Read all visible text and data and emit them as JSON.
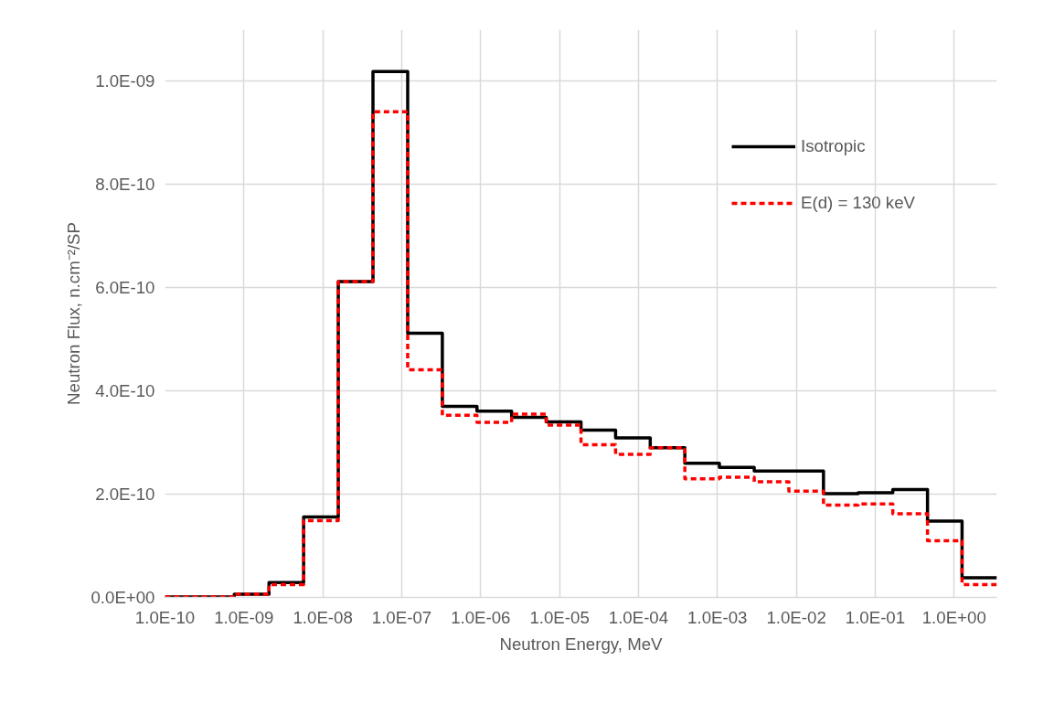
{
  "chart_data": {
    "type": "histogram",
    "xlabel": "Neutron Energy, MeV",
    "ylabel": "Neutron Flux, n.cm⁻²/SP",
    "bins": [
      1e-10,
      2.75e-10,
      7.55e-10,
      2.08e-09,
      5.71e-09,
      1.57e-08,
      4.32e-08,
      1.19e-07,
      3.27e-07,
      8.98e-07,
      2.47e-06,
      6.78e-06,
      1.87e-05,
      5.13e-05,
      0.000141,
      0.000387,
      0.00106,
      0.00293,
      0.00805,
      0.0221,
      0.0608,
      0.167,
      0.46,
      1.26,
      3.48
    ],
    "series": [
      {
        "name": "Isotropic",
        "color": "#000000",
        "line_style": "solid",
        "values": [
          1e-12,
          1e-12,
          6e-12,
          2.9e-11,
          1.56e-10,
          6.12e-10,
          1.019e-09,
          5.12e-10,
          3.7e-10,
          3.61e-10,
          3.49e-10,
          3.4e-10,
          3.24e-10,
          3.09e-10,
          2.9e-10,
          2.6e-10,
          2.52e-10,
          2.45e-10,
          2.45e-10,
          2.01e-10,
          2.03e-10,
          2.09e-10,
          1.48e-10,
          3.8e-11
        ]
      },
      {
        "name": "E(d) = 130 keV",
        "color": "#ff0000",
        "line_style": "dashed",
        "values": [
          1e-12,
          1e-12,
          6e-12,
          2.5e-11,
          1.49e-10,
          6.12e-10,
          9.41e-10,
          4.41e-10,
          3.53e-10,
          3.39e-10,
          3.55e-10,
          3.34e-10,
          2.96e-10,
          2.77e-10,
          2.9e-10,
          2.3e-10,
          2.33e-10,
          2.24e-10,
          2.06e-10,
          1.79e-10,
          1.81e-10,
          1.62e-10,
          1.1e-10,
          2.5e-11
        ]
      }
    ],
    "log": "x",
    "xlim": [
      1e-10,
      3.48
    ],
    "xticks": [
      {
        "value": 1e-10,
        "label": "1.0E-10"
      },
      {
        "value": 1e-09,
        "label": "1.0E-09"
      },
      {
        "value": 1e-08,
        "label": "1.0E-08"
      },
      {
        "value": 1e-07,
        "label": "1.0E-07"
      },
      {
        "value": 1e-06,
        "label": "1.0E-06"
      },
      {
        "value": 1e-05,
        "label": "1.0E-05"
      },
      {
        "value": 0.0001,
        "label": "1.0E-04"
      },
      {
        "value": 0.001,
        "label": "1.0E-03"
      },
      {
        "value": 0.01,
        "label": "1.0E-02"
      },
      {
        "value": 0.1,
        "label": "1.0E-01"
      },
      {
        "value": 1,
        "label": "1.0E+00"
      }
    ],
    "ylim": [
      0,
      1.1e-09
    ],
    "yticks": [
      {
        "value": 0,
        "label": "0.0E+00"
      },
      {
        "value": 2e-10,
        "label": "2.0E-10"
      },
      {
        "value": 4e-10,
        "label": "4.0E-10"
      },
      {
        "value": 6e-10,
        "label": "6.0E-10"
      },
      {
        "value": 8e-10,
        "label": "8.0E-10"
      },
      {
        "value": 1e-09,
        "label": "1.0E-09"
      }
    ],
    "grid": true,
    "legend": "right",
    "marker": "none"
  }
}
